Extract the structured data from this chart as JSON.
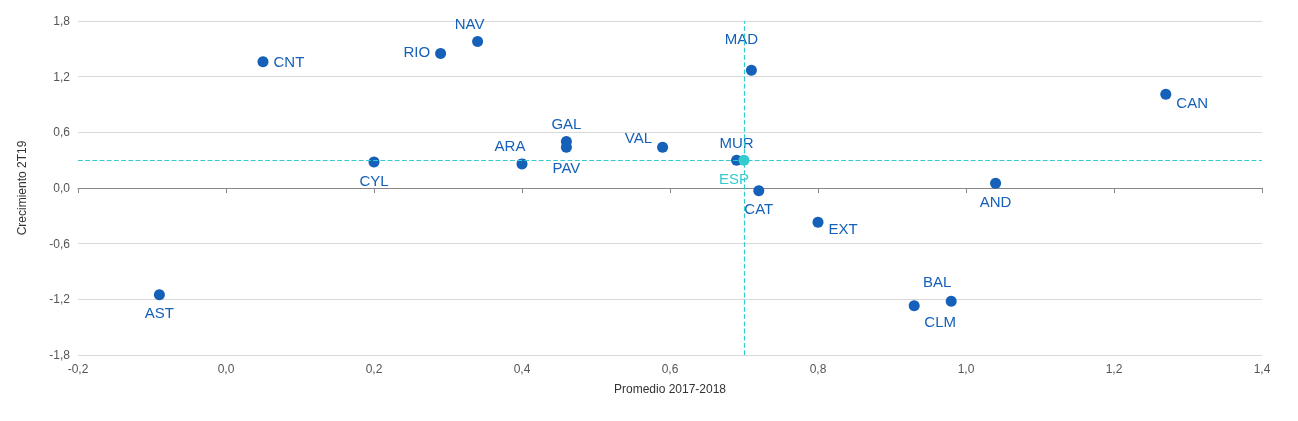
{
  "chart_data": {
    "type": "scatter",
    "xlabel": "Promedio 2017-2018",
    "ylabel": "Crecimiento 2T19",
    "series": [
      {
        "color": "#1560b8",
        "x": [
          0.05,
          0.29,
          0.34,
          0.71,
          1.27,
          0.46,
          0.46,
          0.59,
          0.4,
          0.2,
          0.69,
          0.72,
          1.04,
          0.8,
          0.98,
          0.93,
          -0.09
        ],
        "values": [
          1.36,
          1.45,
          1.58,
          1.27,
          1.01,
          0.5,
          0.44,
          0.44,
          0.26,
          0.28,
          0.3,
          -0.03,
          0.05,
          -0.37,
          -1.22,
          -1.27,
          -1.15
        ],
        "value_labels": [
          "CNT",
          "RIO",
          "NAV",
          "MAD",
          "CAN",
          "GAL",
          "PAV",
          "VAL",
          "ARA",
          "CYL",
          "MUR",
          "CAT",
          "AND",
          "EXT",
          "BAL",
          "CLM",
          "AST"
        ]
      },
      {
        "color": "#33cccc",
        "x": [
          0.7
        ],
        "values": [
          0.3
        ],
        "value_labels": [
          "ESP"
        ]
      }
    ],
    "xlim": [
      -0.2,
      1.4
    ],
    "xticks": [
      {
        "value": -0.2,
        "label": "-0,2"
      },
      {
        "value": 0,
        "label": "0,0"
      },
      {
        "value": 0.2,
        "label": "0,2"
      },
      {
        "value": 0.4,
        "label": "0,4"
      },
      {
        "value": 0.6,
        "label": "0,6"
      },
      {
        "value": 0.8,
        "label": "0,8"
      },
      {
        "value": 1.0,
        "label": "1,0"
      },
      {
        "value": 1.2,
        "label": "1,2"
      },
      {
        "value": 1.4,
        "label": "1,4"
      }
    ],
    "ylim": [
      -1.8,
      1.8
    ],
    "yticks": [
      {
        "value": -1.8,
        "label": "-1,8"
      },
      {
        "value": -1.2,
        "label": "-1,2"
      },
      {
        "value": -0.6,
        "label": "-0,6"
      },
      {
        "value": 0,
        "label": "0,0"
      },
      {
        "value": 0.6,
        "label": "0,6"
      },
      {
        "value": 1.2,
        "label": "1,2"
      },
      {
        "value": 1.8,
        "label": "1,8"
      }
    ],
    "grid": "y",
    "marker": "circle",
    "ref_lines": [
      {
        "axis": "x",
        "value": 0.7,
        "color": "#33cccc",
        "line_style": "dashed"
      },
      {
        "axis": "y",
        "value": 0.3,
        "color": "#33cccc",
        "line_style": "dashed"
      }
    ]
  }
}
